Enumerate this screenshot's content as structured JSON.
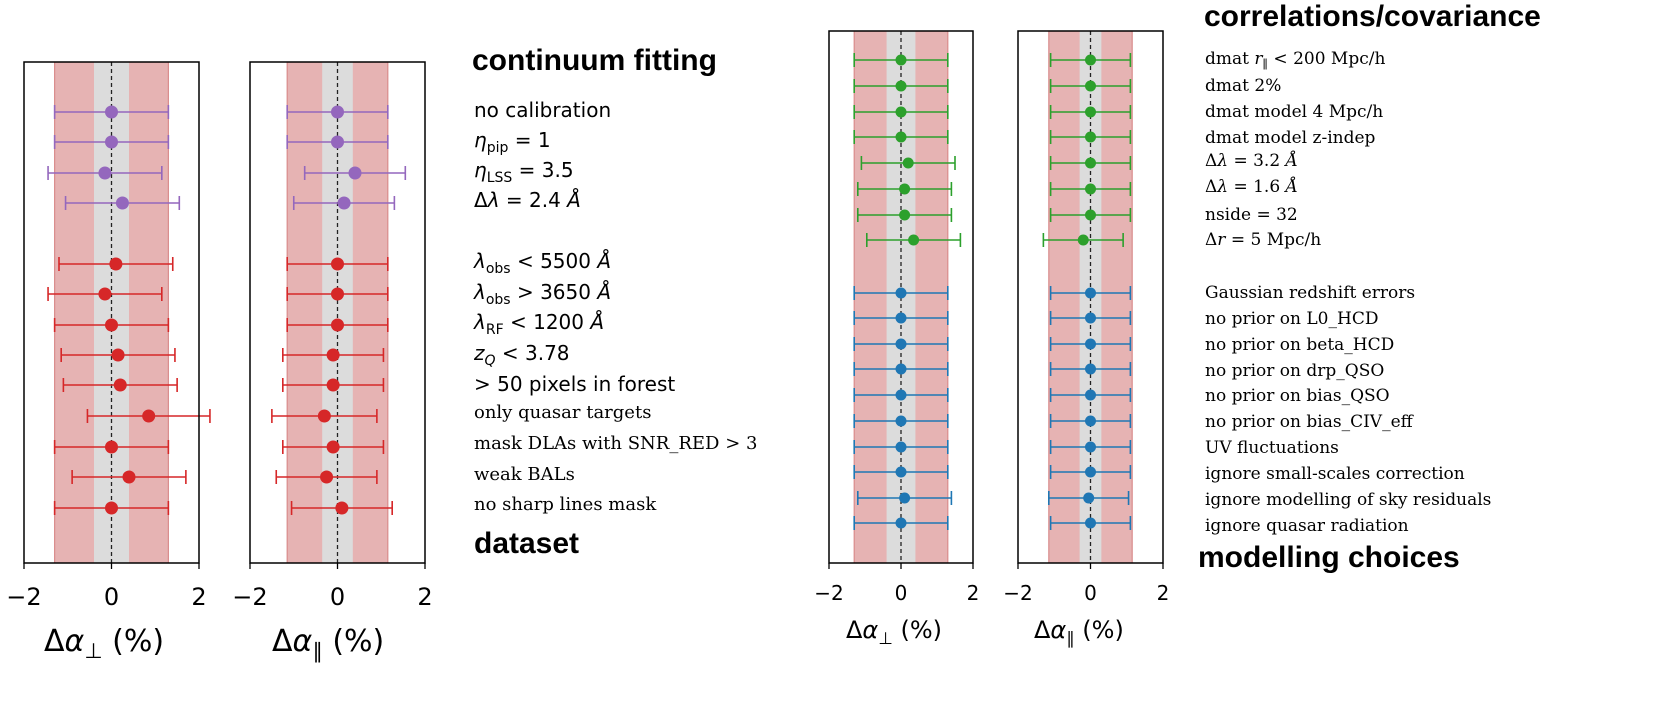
{
  "colors": {
    "continuum": "#9467bd",
    "dataset": "#d62728",
    "correlations": "#2ca02c",
    "modelling": "#1f77b4",
    "band_outer": "#e6b3b3",
    "band_inner": "#dcdcdc"
  },
  "category_titles": {
    "continuum": "continuum fitting",
    "dataset": "dataset",
    "correlations": "correlations/covariance",
    "modelling": "modelling choices"
  },
  "left_labels": {
    "continuum": [
      "no calibration",
      "ηpip = 1",
      "ηLSS = 3.5",
      "Δλ = 2.4 Å"
    ],
    "dataset": [
      "λobs < 5500 Å",
      "λobs > 3650 Å",
      "λRF < 1200 Å",
      "zQ < 3.78",
      "> 50 pixels in forest",
      "only quasar targets",
      "mask DLAs with SNR_RED > 3",
      "weak BALs",
      "no sharp lines mask"
    ]
  },
  "right_labels": {
    "correlations": [
      "dmat r∥ < 200 Mpc/h",
      "dmat 2%",
      "dmat model 4 Mpc/h",
      "dmat model z-indep",
      "Δλ = 3.2 Å",
      "Δλ = 1.6 Å",
      "nside = 32",
      "Δr = 5 Mpc/h"
    ],
    "modelling": [
      "Gaussian redshift errors",
      "no prior on L0_HCD",
      "no prior on beta_HCD",
      "no prior on drp_QSO",
      "no prior on bias_QSO",
      "no prior on bias_CIV_eff",
      "UV fluctuations",
      "ignore small-scales correction",
      "ignore modelling of sky residuals",
      "ignore quasar radiation"
    ]
  },
  "axis_titles": {
    "perp": "Δα⊥ (%)",
    "par": "Δα∥ (%)"
  },
  "chart_data": [
    {
      "type": "scatter",
      "name": "left-perp",
      "xlabel": "Δα⊥ (%)",
      "xlim": [
        -2,
        2
      ],
      "xticks": [
        -2,
        0,
        2
      ],
      "tick_labels": [
        "−2",
        "0",
        "2"
      ],
      "bands": {
        "inner": [
          -0.4,
          0.4
        ],
        "outer": [
          -1.3,
          1.3
        ]
      },
      "series": [
        {
          "name": "continuum fitting",
          "color": "#9467bd",
          "values": [
            0.0,
            0.0,
            -0.15,
            0.25
          ],
          "errors": [
            1.3,
            1.3,
            1.3,
            1.3
          ]
        },
        {
          "name": "dataset",
          "color": "#d62728",
          "values": [
            0.1,
            -0.15,
            0.0,
            0.15,
            0.2,
            0.85,
            0.0,
            0.4,
            0.0
          ],
          "errors": [
            1.3,
            1.3,
            1.3,
            1.3,
            1.3,
            1.4,
            1.3,
            1.3,
            1.3
          ]
        }
      ]
    },
    {
      "type": "scatter",
      "name": "left-par",
      "xlabel": "Δα∥ (%)",
      "xlim": [
        -2,
        2
      ],
      "xticks": [
        -2,
        0,
        2
      ],
      "tick_labels": [
        "−2",
        "0",
        "2"
      ],
      "bands": {
        "inner": [
          -0.35,
          0.35
        ],
        "outer": [
          -1.15,
          1.15
        ]
      },
      "series": [
        {
          "name": "continuum fitting",
          "color": "#9467bd",
          "values": [
            0.0,
            0.0,
            0.4,
            0.15
          ],
          "errors": [
            1.15,
            1.15,
            1.15,
            1.15
          ]
        },
        {
          "name": "dataset",
          "color": "#d62728",
          "values": [
            0.0,
            0.0,
            0.0,
            -0.1,
            -0.1,
            -0.3,
            -0.1,
            -0.25,
            0.1
          ],
          "errors": [
            1.15,
            1.15,
            1.15,
            1.15,
            1.15,
            1.2,
            1.15,
            1.15,
            1.15
          ]
        }
      ]
    },
    {
      "type": "scatter",
      "name": "right-perp",
      "xlabel": "Δα⊥ (%)",
      "xlim": [
        -2,
        2
      ],
      "xticks": [
        -2,
        0,
        2
      ],
      "tick_labels": [
        "−2",
        "0",
        "2"
      ],
      "bands": {
        "inner": [
          -0.4,
          0.4
        ],
        "outer": [
          -1.3,
          1.3
        ]
      },
      "series": [
        {
          "name": "correlations/covariance",
          "color": "#2ca02c",
          "values": [
            0.0,
            0.0,
            0.0,
            0.0,
            0.2,
            0.1,
            0.1,
            0.35
          ],
          "errors": [
            1.3,
            1.3,
            1.3,
            1.3,
            1.3,
            1.3,
            1.3,
            1.3
          ]
        },
        {
          "name": "modelling choices",
          "color": "#1f77b4",
          "values": [
            0.0,
            0.0,
            0.0,
            0.0,
            0.0,
            0.0,
            0.0,
            0.0,
            0.1,
            0.0
          ],
          "errors": [
            1.3,
            1.3,
            1.3,
            1.3,
            1.3,
            1.3,
            1.3,
            1.3,
            1.3,
            1.3
          ]
        }
      ]
    },
    {
      "type": "scatter",
      "name": "right-par",
      "xlabel": "Δα∥ (%)",
      "xlim": [
        -2,
        2
      ],
      "xticks": [
        -2,
        0,
        2
      ],
      "tick_labels": [
        "−2",
        "0",
        "2"
      ],
      "bands": {
        "inner": [
          -0.3,
          0.3
        ],
        "outer": [
          -1.15,
          1.15
        ]
      },
      "series": [
        {
          "name": "correlations/covariance",
          "color": "#2ca02c",
          "values": [
            0.0,
            0.0,
            0.0,
            0.0,
            0.0,
            0.0,
            0.0,
            -0.2
          ],
          "errors": [
            1.1,
            1.1,
            1.1,
            1.1,
            1.1,
            1.1,
            1.1,
            1.1
          ]
        },
        {
          "name": "modelling choices",
          "color": "#1f77b4",
          "values": [
            0.0,
            0.0,
            0.0,
            0.0,
            0.0,
            0.0,
            0.0,
            0.0,
            -0.05,
            0.0
          ],
          "errors": [
            1.1,
            1.1,
            1.1,
            1.1,
            1.1,
            1.1,
            1.1,
            1.1,
            1.1,
            1.1
          ]
        }
      ]
    }
  ]
}
